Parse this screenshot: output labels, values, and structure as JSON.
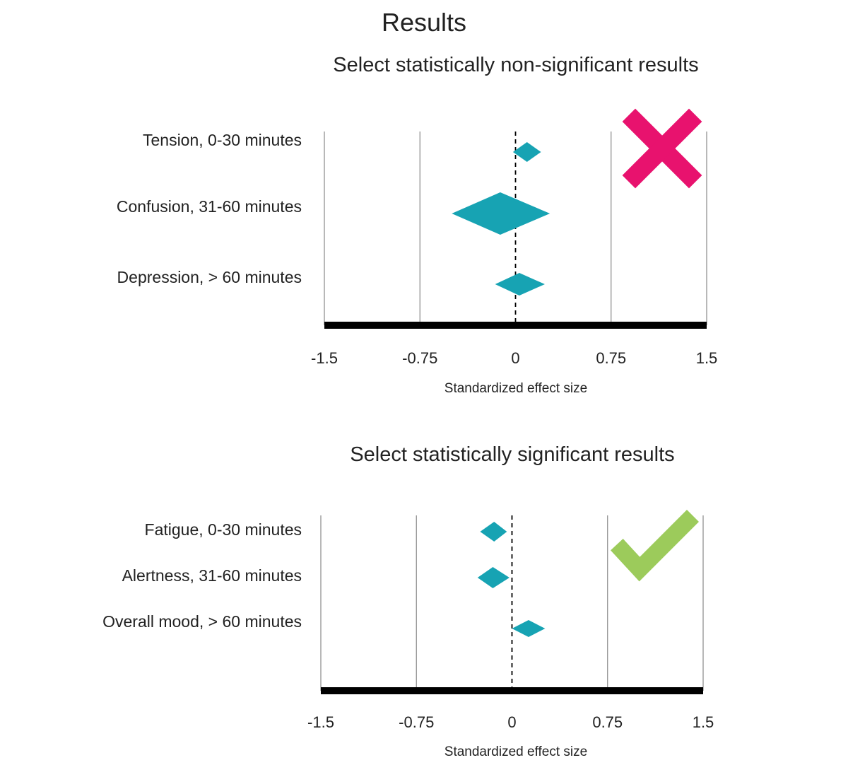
{
  "title": "Results",
  "colors": {
    "marker": "#17a3b3",
    "cross": "#e8126e",
    "check": "#9ccb5b",
    "gridline": "#888888",
    "axis": "#000000",
    "text": "#222222"
  },
  "chart_data": [
    {
      "type": "scatter",
      "marker": "diamond",
      "title": "Select statistically non-significant results",
      "xlabel": "Standardized effect size",
      "xlim": [
        -1.5,
        1.5
      ],
      "xticks": [
        -1.5,
        -0.75,
        0,
        0.75,
        1.5
      ],
      "xtick_labels": [
        "-1.5",
        "-0.75",
        "0",
        "0.75",
        "1.5"
      ],
      "grid": true,
      "reference_line": 0,
      "badge_icon": "cross-icon",
      "points": [
        {
          "label": "Tension, 0-30 minutes",
          "estimate": 0.09,
          "ci": [
            -0.02,
            0.2
          ]
        },
        {
          "label": "Confusion, 31-60 minutes",
          "estimate": -0.12,
          "ci": [
            -0.5,
            0.27
          ]
        },
        {
          "label": "Depression, > 60 minutes",
          "estimate": 0.03,
          "ci": [
            -0.16,
            0.23
          ]
        }
      ]
    },
    {
      "type": "scatter",
      "marker": "diamond",
      "title": "Select statistically significant results",
      "xlabel": "Standardized effect size",
      "xlim": [
        -1.5,
        1.5
      ],
      "xticks": [
        -1.5,
        -0.75,
        0,
        0.75,
        1.5
      ],
      "xtick_labels": [
        "-1.5",
        "-0.75",
        "0",
        "0.75",
        "1.5"
      ],
      "grid": true,
      "reference_line": 0,
      "badge_icon": "check-icon",
      "points": [
        {
          "label": "Fatigue, 0-30 minutes",
          "estimate": -0.14,
          "ci": [
            -0.25,
            -0.04
          ]
        },
        {
          "label": "Alertness, 31-60 minutes",
          "estimate": -0.15,
          "ci": [
            -0.27,
            -0.02
          ]
        },
        {
          "label": "Overall mood, > 60 minutes",
          "estimate": 0.13,
          "ci": [
            0.0,
            0.26
          ]
        }
      ]
    }
  ]
}
